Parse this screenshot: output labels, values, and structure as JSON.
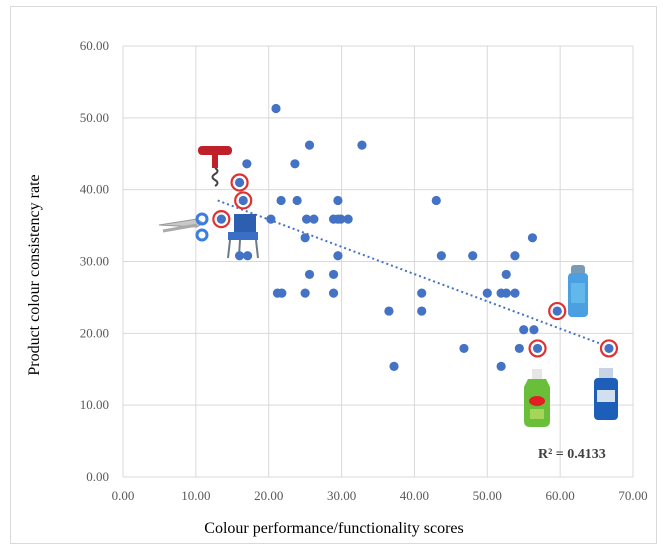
{
  "chart_data": {
    "type": "scatter",
    "xlabel": "Colour performance/functionality scores",
    "ylabel": "Product colour consistency rate",
    "xlim": [
      0,
      70
    ],
    "ylim": [
      0,
      60
    ],
    "x_ticks": [
      "0.00",
      "10.00",
      "20.00",
      "30.00",
      "40.00",
      "50.00",
      "60.00",
      "70.00"
    ],
    "y_ticks": [
      "0.00",
      "10.00",
      "20.00",
      "30.00",
      "40.00",
      "50.00",
      "60.00"
    ],
    "grid": true,
    "annotation": "R² = 0.4133",
    "point_color": "#4472c4",
    "highlight_color": "#e03030",
    "trendline": {
      "style": "dotted",
      "x": [
        13,
        67
      ],
      "y": [
        38.5,
        18
      ]
    },
    "points": [
      {
        "x": 21.0,
        "y": 51.3
      },
      {
        "x": 25.6,
        "y": 46.2
      },
      {
        "x": 32.8,
        "y": 46.2
      },
      {
        "x": 17.0,
        "y": 43.6
      },
      {
        "x": 23.6,
        "y": 43.6
      },
      {
        "x": 16.0,
        "y": 41.0,
        "highlight": true
      },
      {
        "x": 16.5,
        "y": 38.5,
        "highlight": true
      },
      {
        "x": 21.7,
        "y": 38.5
      },
      {
        "x": 23.9,
        "y": 38.5
      },
      {
        "x": 29.5,
        "y": 38.5
      },
      {
        "x": 43.0,
        "y": 38.5
      },
      {
        "x": 13.5,
        "y": 35.9,
        "highlight": true
      },
      {
        "x": 20.3,
        "y": 35.9
      },
      {
        "x": 25.2,
        "y": 35.9
      },
      {
        "x": 26.2,
        "y": 35.9
      },
      {
        "x": 28.9,
        "y": 35.9
      },
      {
        "x": 29.5,
        "y": 35.9
      },
      {
        "x": 29.9,
        "y": 35.9
      },
      {
        "x": 30.9,
        "y": 35.9
      },
      {
        "x": 25.0,
        "y": 33.3
      },
      {
        "x": 56.2,
        "y": 33.3
      },
      {
        "x": 16.0,
        "y": 30.8
      },
      {
        "x": 17.1,
        "y": 30.8
      },
      {
        "x": 29.5,
        "y": 30.8
      },
      {
        "x": 43.7,
        "y": 30.8
      },
      {
        "x": 48.0,
        "y": 30.8
      },
      {
        "x": 53.8,
        "y": 30.8
      },
      {
        "x": 25.6,
        "y": 28.2
      },
      {
        "x": 28.9,
        "y": 28.2
      },
      {
        "x": 52.6,
        "y": 28.2
      },
      {
        "x": 21.2,
        "y": 25.6
      },
      {
        "x": 21.8,
        "y": 25.6
      },
      {
        "x": 25.0,
        "y": 25.6
      },
      {
        "x": 28.9,
        "y": 25.6
      },
      {
        "x": 41.0,
        "y": 25.6
      },
      {
        "x": 50.0,
        "y": 25.6
      },
      {
        "x": 51.9,
        "y": 25.6
      },
      {
        "x": 52.6,
        "y": 25.6
      },
      {
        "x": 53.8,
        "y": 25.6
      },
      {
        "x": 36.5,
        "y": 23.1
      },
      {
        "x": 41.0,
        "y": 23.1
      },
      {
        "x": 59.6,
        "y": 23.1,
        "highlight": true
      },
      {
        "x": 55.0,
        "y": 20.5
      },
      {
        "x": 56.4,
        "y": 20.5
      },
      {
        "x": 46.8,
        "y": 17.9
      },
      {
        "x": 54.4,
        "y": 17.9
      },
      {
        "x": 56.9,
        "y": 17.9,
        "highlight": true
      },
      {
        "x": 66.7,
        "y": 17.9,
        "highlight": true
      },
      {
        "x": 37.2,
        "y": 15.4
      },
      {
        "x": 51.9,
        "y": 15.4
      }
    ]
  }
}
